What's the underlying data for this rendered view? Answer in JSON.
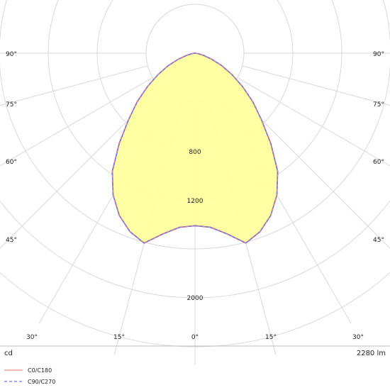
{
  "chart_data": {
    "type": "polar",
    "unit": "cd",
    "luminous_flux": "2280 lm",
    "angle_labels": {
      "right_side": [
        "90°",
        "75°",
        "60°",
        "45°"
      ],
      "left_side": [
        "90°",
        "75°",
        "60°",
        "45°"
      ],
      "bottom": [
        "30°",
        "15°",
        "0°",
        "15°",
        "30°"
      ]
    },
    "radial_labels": [
      "800",
      "1200",
      "2000"
    ],
    "series": [
      {
        "name": "C0/C180",
        "color": "#f28a8a",
        "line_style": "solid",
        "angles": [
          0,
          5,
          10,
          15,
          20,
          25,
          30,
          35,
          40,
          45,
          50,
          55,
          60,
          65,
          70,
          75,
          80,
          85,
          90
        ],
        "values": [
          1580,
          1600,
          1680,
          1800,
          1740,
          1640,
          1500,
          1320,
          1080,
          860,
          690,
          530,
          390,
          270,
          165,
          85,
          35,
          10,
          0
        ]
      },
      {
        "name": "C90/C270",
        "color": "#6a78f0",
        "line_style": "dashed",
        "angles": [
          0,
          5,
          10,
          15,
          20,
          25,
          30,
          35,
          40,
          45,
          50,
          55,
          60,
          65,
          70,
          75,
          80,
          85,
          90
        ],
        "values": [
          1580,
          1600,
          1680,
          1800,
          1740,
          1640,
          1500,
          1320,
          1080,
          860,
          690,
          530,
          390,
          270,
          165,
          85,
          35,
          10,
          0
        ]
      }
    ],
    "fill_color": "#ffff99",
    "outline_color": "#5a2d91"
  },
  "footer": {
    "left": "cd",
    "right": "2280 lm"
  },
  "legend": [
    {
      "label": "C0/C180",
      "color": "#f28a8a",
      "style": "solid"
    },
    {
      "label": "C90/C270",
      "color": "#6a78f0",
      "style": "dashed"
    }
  ]
}
